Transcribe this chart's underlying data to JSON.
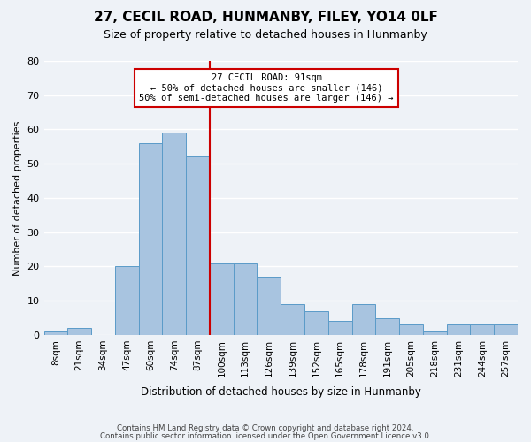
{
  "title": "27, CECIL ROAD, HUNMANBY, FILEY, YO14 0LF",
  "subtitle": "Size of property relative to detached houses in Hunmanby",
  "xlabel": "Distribution of detached houses by size in Hunmanby",
  "ylabel": "Number of detached properties",
  "bin_labels": [
    "8sqm",
    "21sqm",
    "34sqm",
    "47sqm",
    "60sqm",
    "74sqm",
    "87sqm",
    "100sqm",
    "113sqm",
    "126sqm",
    "139sqm",
    "152sqm",
    "165sqm",
    "178sqm",
    "191sqm",
    "205sqm",
    "218sqm",
    "231sqm",
    "244sqm",
    "257sqm"
  ],
  "bar_values": [
    1,
    2,
    0,
    20,
    56,
    59,
    52,
    21,
    21,
    17,
    9,
    7,
    4,
    9,
    5,
    3,
    1,
    3,
    3,
    3
  ],
  "bar_color": "#a8c4e0",
  "bar_edge_color": "#5a9bc8",
  "vline_x_index": 6.5,
  "vline_color": "#cc0000",
  "annotation_box_text": "27 CECIL ROAD: 91sqm\n← 50% of detached houses are smaller (146)\n50% of semi-detached houses are larger (146) →",
  "annotation_box_color": "#cc0000",
  "ylim": [
    0,
    80
  ],
  "yticks": [
    0,
    10,
    20,
    30,
    40,
    50,
    60,
    70,
    80
  ],
  "footer_line1": "Contains HM Land Registry data © Crown copyright and database right 2024.",
  "footer_line2": "Contains public sector information licensed under the Open Government Licence v3.0.",
  "background_color": "#eef2f7",
  "plot_bg_color": "#eef2f7"
}
